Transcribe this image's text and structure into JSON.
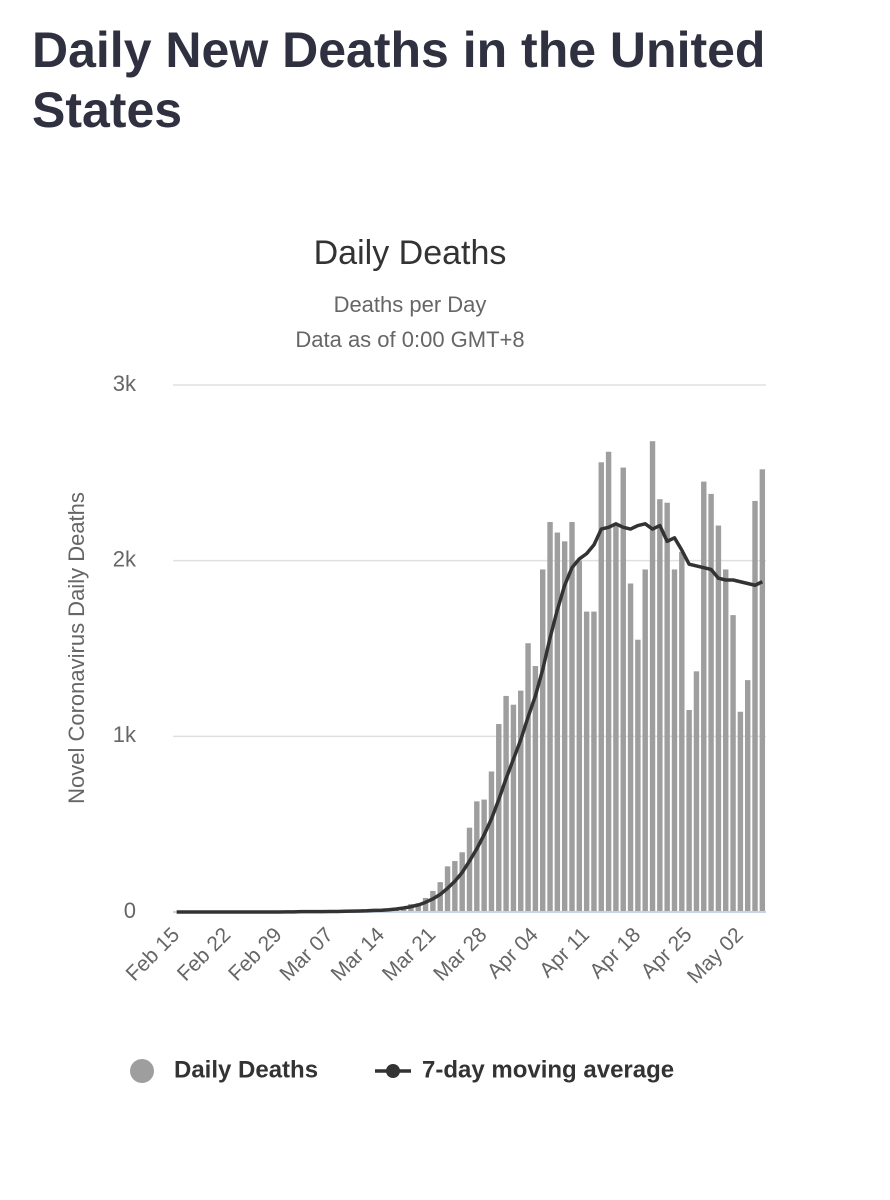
{
  "header": {
    "title": "Daily New Deaths in the United States"
  },
  "chart_data": {
    "type": "bar",
    "title": "Daily Deaths",
    "subtitle": [
      "Deaths per Day",
      "Data as of 0:00 GMT+8"
    ],
    "y_label": "Novel Coronavirus Daily Deaths",
    "categories": [
      "Feb 15",
      null,
      null,
      null,
      null,
      null,
      null,
      "Feb 22",
      null,
      null,
      null,
      null,
      null,
      null,
      "Feb 29",
      null,
      null,
      null,
      null,
      null,
      null,
      "Mar 07",
      null,
      null,
      null,
      null,
      null,
      null,
      "Mar 14",
      null,
      null,
      null,
      null,
      null,
      null,
      "Mar 21",
      null,
      null,
      null,
      null,
      null,
      null,
      "Mar 28",
      null,
      null,
      null,
      null,
      null,
      null,
      "Apr 04",
      null,
      null,
      null,
      null,
      null,
      null,
      "Apr 11",
      null,
      null,
      null,
      null,
      null,
      null,
      "Apr 18",
      null,
      null,
      null,
      null,
      null,
      null,
      "Apr 25",
      null,
      null,
      null,
      null,
      null,
      null,
      "May 02",
      null,
      null,
      null
    ],
    "series": [
      {
        "name": "Daily Deaths",
        "type": "bar",
        "color": "#9e9e9e",
        "values": [
          0,
          0,
          0,
          0,
          0,
          0,
          0,
          0,
          0,
          0,
          0,
          0,
          0,
          0,
          1,
          1,
          5,
          1,
          4,
          1,
          2,
          3,
          4,
          4,
          5,
          8,
          7,
          10,
          11,
          10,
          20,
          30,
          45,
          50,
          80,
          120,
          170,
          260,
          290,
          340,
          480,
          630,
          640,
          800,
          1070,
          1230,
          1180,
          1260,
          1530,
          1400,
          1950,
          2220,
          2160,
          2110,
          2220,
          2000,
          1710,
          1710,
          2560,
          2620,
          2200,
          2530,
          1870,
          1550,
          1950,
          2680,
          2350,
          2330,
          1950,
          2050,
          1150,
          1370,
          2450,
          2380,
          2200,
          1950,
          1690,
          1140,
          1320,
          2340,
          2520
        ]
      },
      {
        "name": "7-day moving average",
        "type": "line",
        "color": "#333333",
        "values": [
          0,
          0,
          0,
          0,
          0,
          0,
          0,
          0,
          0,
          0,
          0,
          0,
          0,
          0,
          0,
          1,
          1,
          2,
          2,
          2,
          2,
          3,
          3,
          4,
          5,
          6,
          7,
          9,
          10,
          13,
          17,
          23,
          30,
          40,
          55,
          75,
          100,
          135,
          175,
          225,
          290,
          360,
          440,
          530,
          640,
          760,
          870,
          980,
          1110,
          1230,
          1380,
          1560,
          1720,
          1860,
          1960,
          2010,
          2040,
          2090,
          2180,
          2190,
          2210,
          2190,
          2180,
          2200,
          2210,
          2180,
          2200,
          2110,
          2130,
          2060,
          1980,
          1970,
          1960,
          1950,
          1900,
          1890,
          1890,
          1880,
          1870,
          1860,
          1880
        ]
      }
    ],
    "ylim": [
      0,
      3000
    ],
    "yticks": [
      0,
      {
        "value": 1000,
        "label": "1k"
      },
      {
        "value": 2000,
        "label": "2k"
      },
      {
        "value": 3000,
        "label": "3k"
      }
    ],
    "grid": true
  }
}
